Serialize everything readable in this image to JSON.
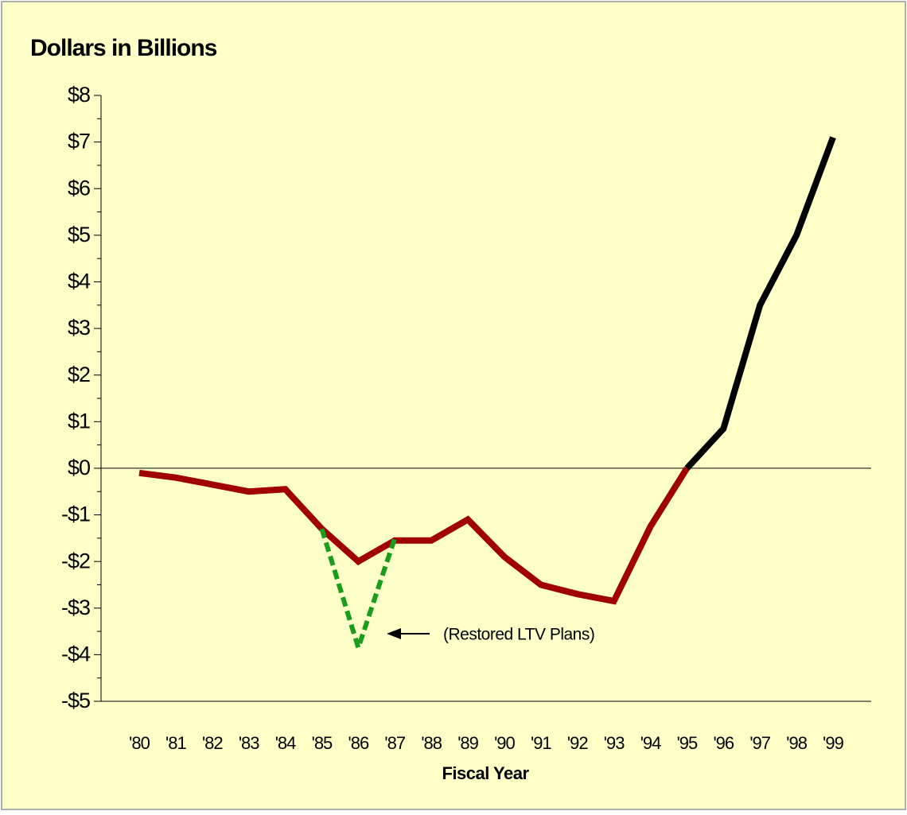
{
  "chart_data": {
    "type": "line",
    "title": "Dollars in Billions",
    "x_label": "Fiscal Year",
    "annotation": "(Restored LTV Plans)",
    "categories": [
      "'80",
      "'81",
      "'82",
      "'83",
      "'84",
      "'85",
      "'86",
      "'87",
      "'88",
      "'89",
      "'90",
      "'91",
      "'92",
      "'93",
      "'94",
      "'95",
      "'96",
      "'97",
      "'98",
      "'99"
    ],
    "series": [
      {
        "color": "#a00000",
        "style": "solid",
        "values": [
          -0.1,
          -0.2,
          -0.35,
          -0.5,
          -0.45,
          -1.3,
          -2.0,
          -1.55,
          -1.55,
          -1.1,
          -1.9,
          -2.5,
          -2.7,
          -2.85,
          -1.25,
          0,
          null,
          null,
          null,
          null
        ]
      },
      {
        "color": "#000000",
        "style": "solid",
        "values": [
          null,
          null,
          null,
          null,
          null,
          null,
          null,
          null,
          null,
          null,
          null,
          null,
          null,
          null,
          null,
          0,
          0.85,
          3.5,
          5.0,
          7.1
        ]
      },
      {
        "color": "#1a9e1a",
        "style": "dashed",
        "values": [
          null,
          null,
          null,
          null,
          null,
          -1.3,
          -3.85,
          -1.5,
          null,
          null,
          null,
          null,
          null,
          null,
          null,
          null,
          null,
          null,
          null,
          null
        ]
      }
    ],
    "ylim": [
      -5,
      8
    ],
    "yticks": [
      {
        "value": 8,
        "label": "$8"
      },
      {
        "value": 7,
        "label": "$7"
      },
      {
        "value": 6,
        "label": "$6"
      },
      {
        "value": 5,
        "label": "$5"
      },
      {
        "value": 4,
        "label": "$4"
      },
      {
        "value": 3,
        "label": "$3"
      },
      {
        "value": 2,
        "label": "$2"
      },
      {
        "value": 1,
        "label": "$1"
      },
      {
        "value": 0,
        "label": "$0"
      },
      {
        "value": -1,
        "label": "-$1"
      },
      {
        "value": -2,
        "label": "-$2"
      },
      {
        "value": -3,
        "label": "-$3"
      },
      {
        "value": -4,
        "label": "-$4"
      },
      {
        "value": -5,
        "label": "-$5"
      }
    ],
    "background": "#ffffc8"
  }
}
